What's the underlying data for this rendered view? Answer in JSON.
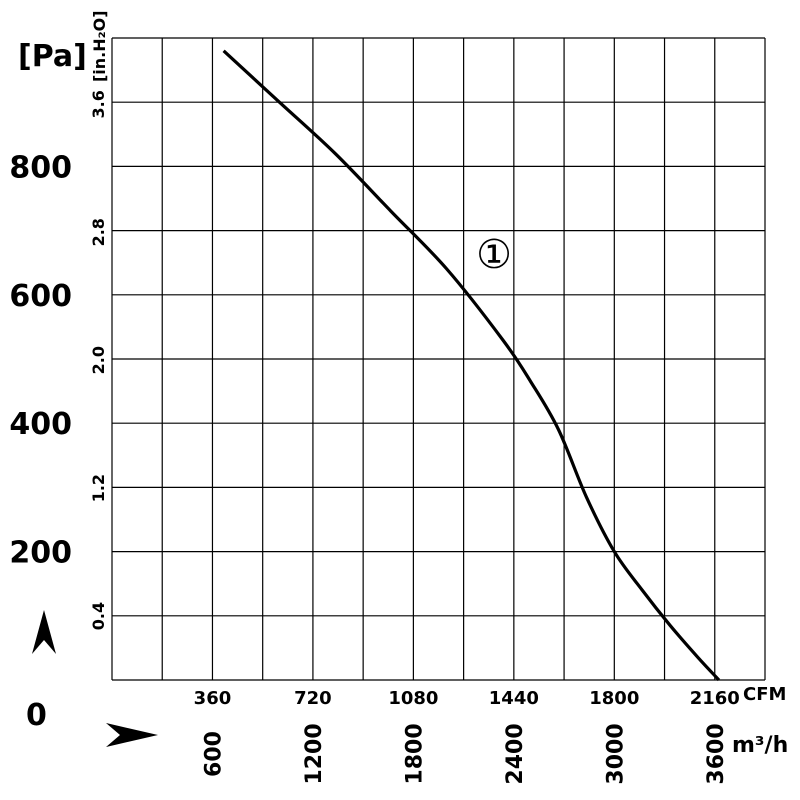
{
  "chart_data": {
    "type": "line",
    "units": {
      "pressure_primary": "[Pa]",
      "pressure_secondary": "[in.H₂O]",
      "flow_primary": "CFM",
      "flow_secondary": "m³/h"
    },
    "y_pa_ticks": [
      "800",
      "600",
      "400",
      "200"
    ],
    "y_pa_tick_values": [
      800,
      600,
      400,
      200
    ],
    "y_inh2o_ticks": [
      "3.6",
      "2.8",
      "2.0",
      "1.2",
      "0.4"
    ],
    "y_inh2o_tick_values": [
      3.6,
      2.8,
      2.0,
      1.2,
      0.4
    ],
    "x_cfm_ticks": [
      "360",
      "720",
      "1080",
      "1440",
      "1800",
      "2160"
    ],
    "x_cfm_tick_values": [
      360,
      720,
      1080,
      1440,
      1800,
      2160
    ],
    "x_m3h_ticks": [
      "600",
      "1200",
      "1800",
      "2400",
      "3000",
      "3600"
    ],
    "origin_label": "0",
    "xlim": [
      0,
      2340
    ],
    "ylim": [
      0,
      1000
    ],
    "grid": true,
    "series": [
      {
        "name": "①",
        "x": [
          400,
          600,
          800,
          1000,
          1200,
          1400,
          1500,
          1600,
          1700,
          1800,
          1900,
          2000,
          2100,
          2175
        ],
        "y": [
          980,
          900,
          820,
          730,
          640,
          530,
          465,
          390,
          285,
          200,
          140,
          85,
          35,
          0
        ]
      }
    ]
  }
}
